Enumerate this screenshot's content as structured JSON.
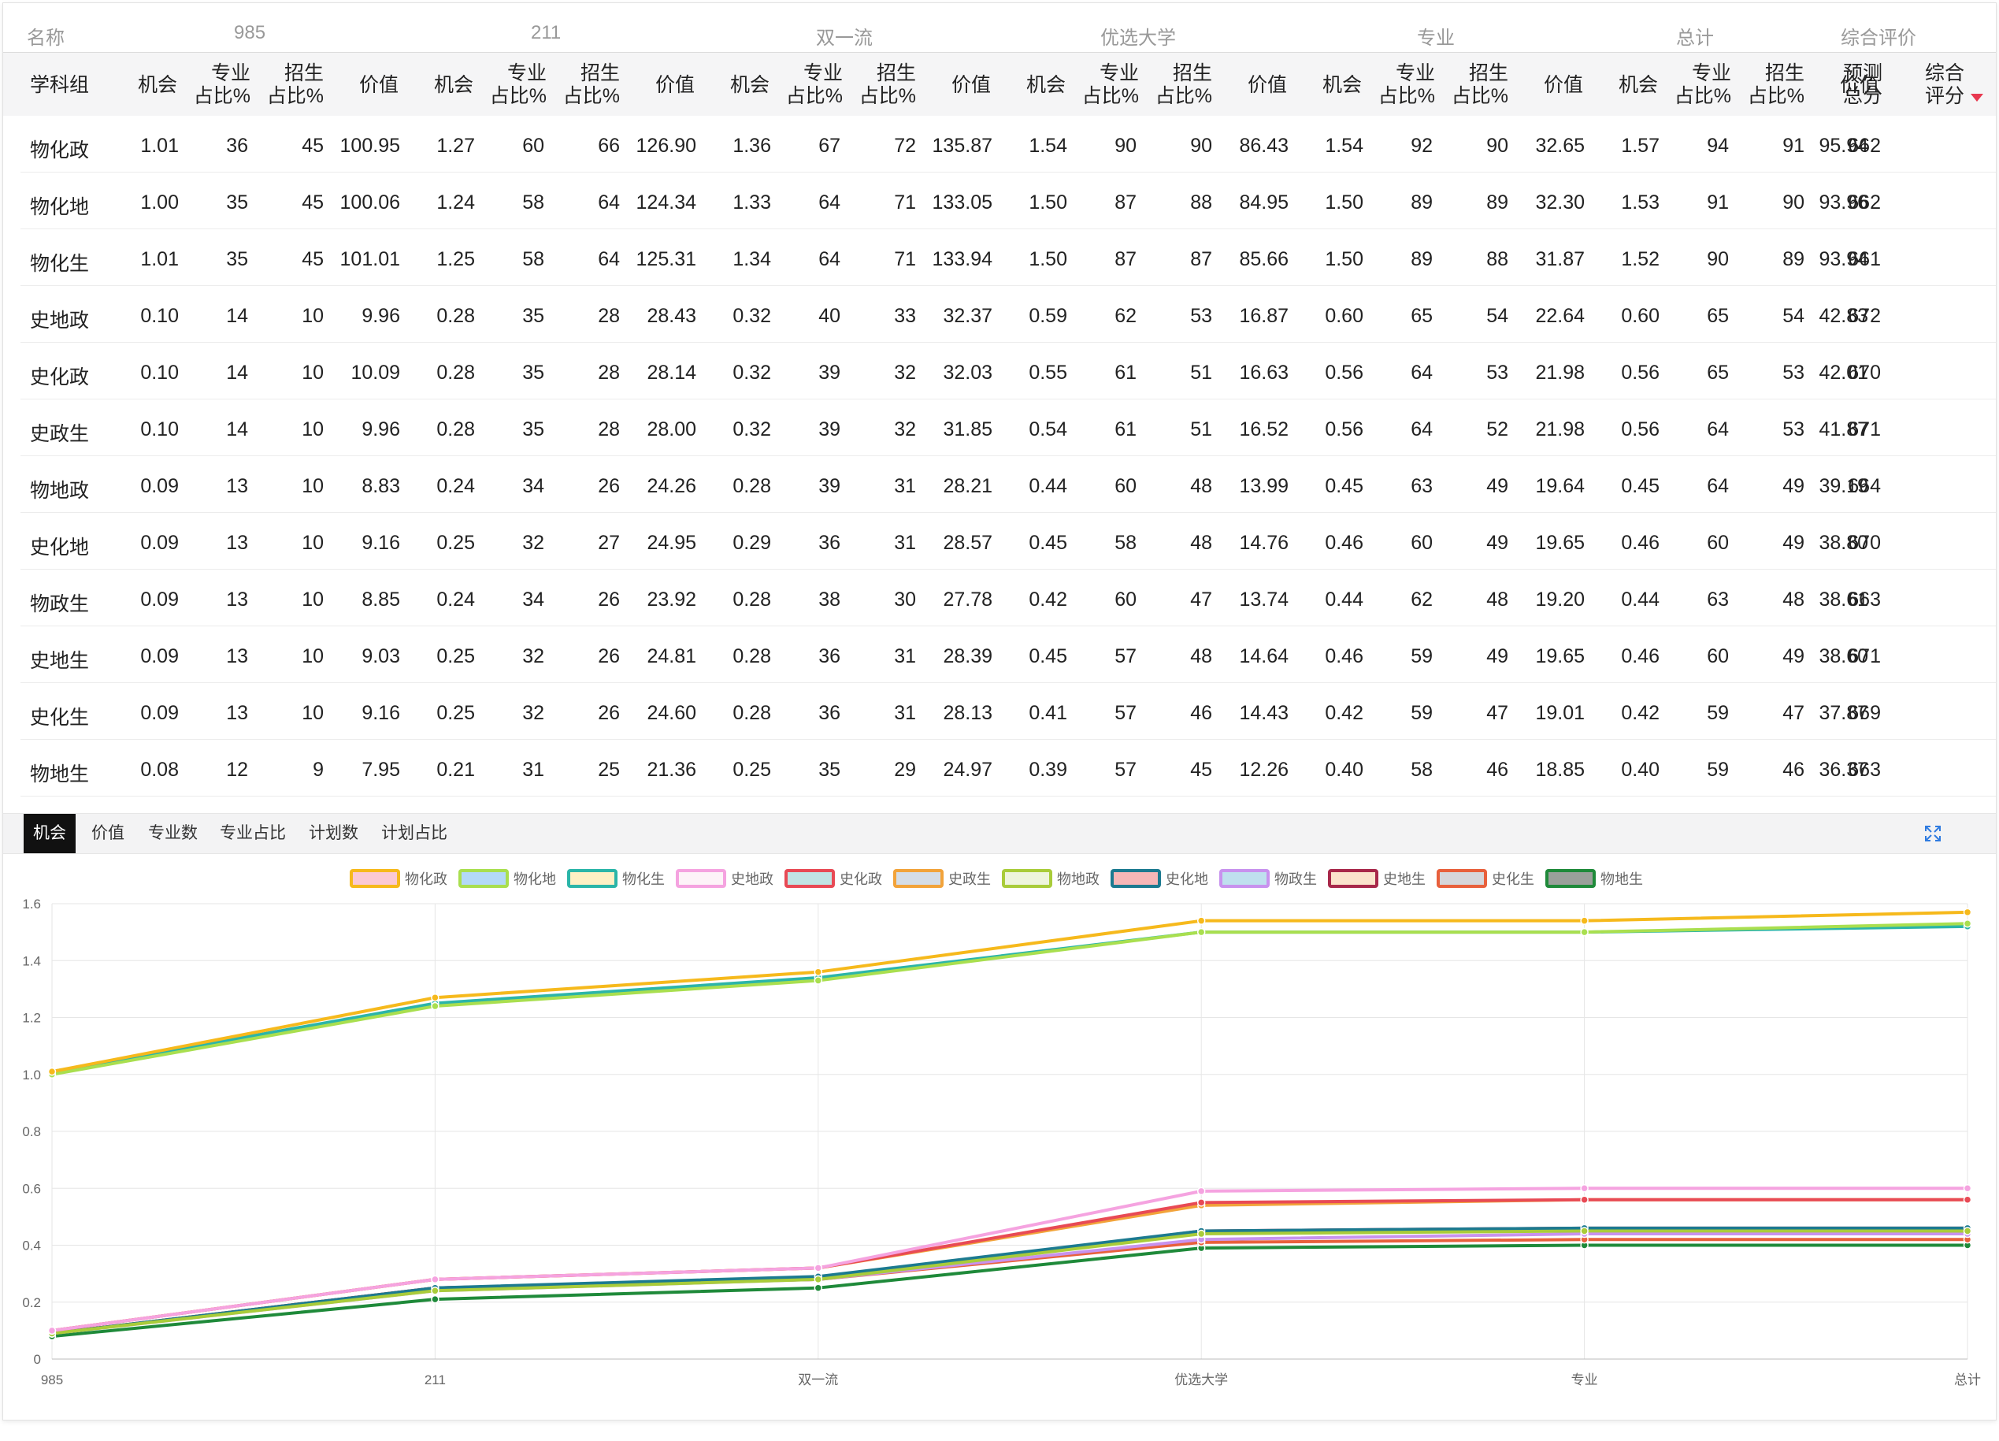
{
  "table": {
    "group_headers": [
      "名称",
      "985",
      "211",
      "双一流",
      "优选大学",
      "专业",
      "总计",
      "综合评价"
    ],
    "name_header": "学科组",
    "sub_headers": {
      "chance": "机会",
      "major_pct": [
        "专业",
        "占比%"
      ],
      "enroll_pct": [
        "招生",
        "占比%"
      ],
      "value": "价值",
      "pred_total": [
        "预测",
        "总分"
      ],
      "score": [
        "综合",
        "评分"
      ]
    },
    "rows": [
      {
        "name": "物化政",
        "cells": [
          "1.01",
          "36",
          "45",
          "100.95",
          "1.27",
          "60",
          "66",
          "126.90",
          "1.36",
          "67",
          "72",
          "135.87",
          "1.54",
          "90",
          "90",
          "86.43",
          "1.54",
          "92",
          "90",
          "32.65",
          "1.57",
          "94",
          "91",
          "662",
          "95.94"
        ]
      },
      {
        "name": "物化地",
        "cells": [
          "1.00",
          "35",
          "45",
          "100.06",
          "1.24",
          "58",
          "64",
          "124.34",
          "1.33",
          "64",
          "71",
          "133.05",
          "1.50",
          "87",
          "88",
          "84.95",
          "1.50",
          "89",
          "89",
          "32.30",
          "1.53",
          "91",
          "90",
          "662",
          "93.96"
        ]
      },
      {
        "name": "物化生",
        "cells": [
          "1.01",
          "35",
          "45",
          "101.01",
          "1.25",
          "58",
          "64",
          "125.31",
          "1.34",
          "64",
          "71",
          "133.94",
          "1.50",
          "87",
          "87",
          "85.66",
          "1.50",
          "89",
          "88",
          "31.87",
          "1.52",
          "90",
          "89",
          "661",
          "93.94"
        ]
      },
      {
        "name": "史地政",
        "cells": [
          "0.10",
          "14",
          "10",
          "9.96",
          "0.28",
          "35",
          "28",
          "28.43",
          "0.32",
          "40",
          "33",
          "32.37",
          "0.59",
          "62",
          "53",
          "16.87",
          "0.60",
          "65",
          "54",
          "22.64",
          "0.60",
          "65",
          "54",
          "672",
          "42.83"
        ]
      },
      {
        "name": "史化政",
        "cells": [
          "0.10",
          "14",
          "10",
          "10.09",
          "0.28",
          "35",
          "28",
          "28.14",
          "0.32",
          "39",
          "32",
          "32.03",
          "0.55",
          "61",
          "51",
          "16.63",
          "0.56",
          "64",
          "53",
          "21.98",
          "0.56",
          "65",
          "53",
          "670",
          "42.01"
        ]
      },
      {
        "name": "史政生",
        "cells": [
          "0.10",
          "14",
          "10",
          "9.96",
          "0.28",
          "35",
          "28",
          "28.00",
          "0.32",
          "39",
          "32",
          "31.85",
          "0.54",
          "61",
          "51",
          "16.52",
          "0.56",
          "64",
          "52",
          "21.98",
          "0.56",
          "64",
          "53",
          "671",
          "41.87"
        ]
      },
      {
        "name": "物地政",
        "cells": [
          "0.09",
          "13",
          "10",
          "8.83",
          "0.24",
          "34",
          "26",
          "24.26",
          "0.28",
          "39",
          "31",
          "28.21",
          "0.44",
          "60",
          "48",
          "13.99",
          "0.45",
          "63",
          "49",
          "19.64",
          "0.45",
          "64",
          "49",
          "664",
          "39.19"
        ]
      },
      {
        "name": "史化地",
        "cells": [
          "0.09",
          "13",
          "10",
          "9.16",
          "0.25",
          "32",
          "27",
          "24.95",
          "0.29",
          "36",
          "31",
          "28.57",
          "0.45",
          "58",
          "48",
          "14.76",
          "0.46",
          "60",
          "49",
          "19.65",
          "0.46",
          "60",
          "49",
          "670",
          "38.80"
        ]
      },
      {
        "name": "物政生",
        "cells": [
          "0.09",
          "13",
          "10",
          "8.85",
          "0.24",
          "34",
          "26",
          "23.92",
          "0.28",
          "38",
          "30",
          "27.78",
          "0.42",
          "60",
          "47",
          "13.74",
          "0.44",
          "62",
          "48",
          "19.20",
          "0.44",
          "63",
          "48",
          "663",
          "38.61"
        ]
      },
      {
        "name": "史地生",
        "cells": [
          "0.09",
          "13",
          "10",
          "9.03",
          "0.25",
          "32",
          "26",
          "24.81",
          "0.28",
          "36",
          "31",
          "28.39",
          "0.45",
          "57",
          "48",
          "14.64",
          "0.46",
          "59",
          "49",
          "19.65",
          "0.46",
          "60",
          "49",
          "671",
          "38.60"
        ]
      },
      {
        "name": "史化生",
        "cells": [
          "0.09",
          "13",
          "10",
          "9.16",
          "0.25",
          "32",
          "26",
          "24.60",
          "0.28",
          "36",
          "31",
          "28.13",
          "0.41",
          "57",
          "46",
          "14.43",
          "0.42",
          "59",
          "47",
          "19.01",
          "0.42",
          "59",
          "47",
          "669",
          "37.87"
        ]
      },
      {
        "name": "物地生",
        "cells": [
          "0.08",
          "12",
          "9",
          "7.95",
          "0.21",
          "31",
          "25",
          "21.36",
          "0.25",
          "35",
          "29",
          "24.97",
          "0.39",
          "57",
          "45",
          "12.26",
          "0.40",
          "58",
          "46",
          "18.85",
          "0.40",
          "59",
          "46",
          "663",
          "36.37"
        ]
      }
    ],
    "sort_indicator_color": "#e8384f"
  },
  "tabs": [
    {
      "label": "机会",
      "active": true
    },
    {
      "label": "价值",
      "active": false
    },
    {
      "label": "专业数",
      "active": false
    },
    {
      "label": "专业占比",
      "active": false
    },
    {
      "label": "计划数",
      "active": false
    },
    {
      "label": "计划占比",
      "active": false
    }
  ],
  "chart_data": {
    "type": "line",
    "x": [
      "985",
      "211",
      "双一流",
      "优选大学",
      "专业",
      "总计"
    ],
    "ylim": [
      0,
      1.6
    ],
    "yticks": [
      "0",
      "0.2",
      "0.4",
      "0.6",
      "0.8",
      "1.0",
      "1.2",
      "1.4",
      "1.6"
    ],
    "grid": true,
    "legend_position": "top-center",
    "series": [
      {
        "name": "物化政",
        "color": "#f6b91c",
        "legend_fill": "#fbc9d3",
        "values": [
          1.01,
          1.27,
          1.36,
          1.54,
          1.54,
          1.57
        ]
      },
      {
        "name": "物化地",
        "color": "#a9df4f",
        "legend_fill": "#b3d9f7",
        "values": [
          1.0,
          1.24,
          1.33,
          1.5,
          1.5,
          1.53
        ]
      },
      {
        "name": "物化生",
        "color": "#2bb5a8",
        "legend_fill": "#fdf0c4",
        "values": [
          1.01,
          1.25,
          1.34,
          1.5,
          1.5,
          1.52
        ]
      },
      {
        "name": "史地政",
        "color": "#f5a3e0",
        "legend_fill": "#fdf3f8",
        "values": [
          0.1,
          0.28,
          0.32,
          0.59,
          0.6,
          0.6
        ]
      },
      {
        "name": "史化政",
        "color": "#e84a55",
        "legend_fill": "#c1e4e4",
        "values": [
          0.1,
          0.28,
          0.32,
          0.55,
          0.56,
          0.56
        ]
      },
      {
        "name": "史政生",
        "color": "#f2a33a",
        "legend_fill": "#d5dde6",
        "values": [
          0.1,
          0.28,
          0.32,
          0.54,
          0.56,
          0.56
        ]
      },
      {
        "name": "物地政",
        "color": "#a9cc3a",
        "legend_fill": "#eef5dd",
        "values": [
          0.09,
          0.24,
          0.28,
          0.44,
          0.45,
          0.45
        ]
      },
      {
        "name": "史化地",
        "color": "#1c7a90",
        "legend_fill": "#f6b7b7",
        "values": [
          0.09,
          0.25,
          0.29,
          0.45,
          0.46,
          0.46
        ]
      },
      {
        "name": "物政生",
        "color": "#c892ee",
        "legend_fill": "#bfe0ee",
        "values": [
          0.09,
          0.24,
          0.28,
          0.42,
          0.44,
          0.44
        ]
      },
      {
        "name": "史地生",
        "color": "#a8284a",
        "legend_fill": "#fbe3cc",
        "values": [
          0.09,
          0.25,
          0.28,
          0.45,
          0.46,
          0.46
        ]
      },
      {
        "name": "史化生",
        "color": "#e8603c",
        "legend_fill": "#d6d6da",
        "values": [
          0.09,
          0.25,
          0.28,
          0.41,
          0.42,
          0.42
        ]
      },
      {
        "name": "物地生",
        "color": "#1f8a3a",
        "legend_fill": "#9aa09a",
        "values": [
          0.08,
          0.21,
          0.25,
          0.39,
          0.4,
          0.4
        ]
      }
    ]
  }
}
